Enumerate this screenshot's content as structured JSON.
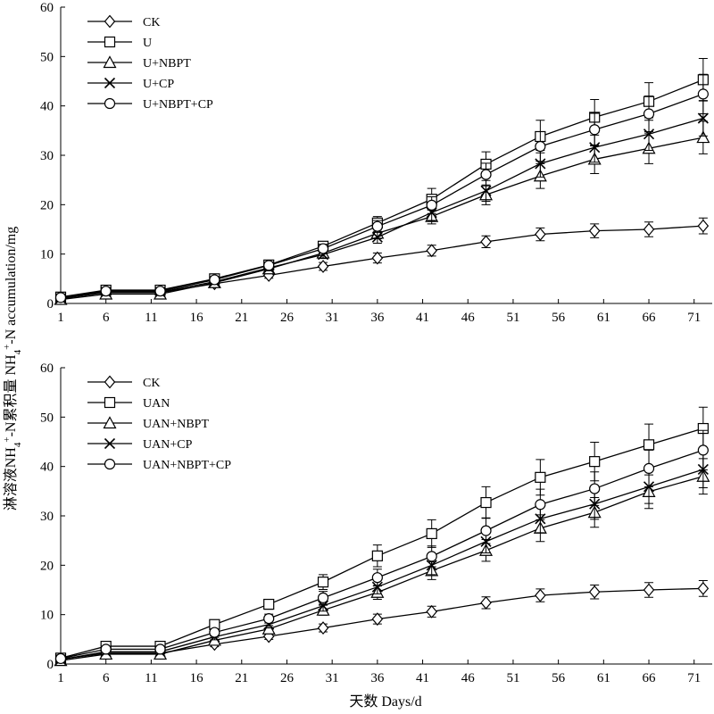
{
  "figure": {
    "ylabel": "淋溶液NH4+-N累积量 NH4+-N accumulation/mg",
    "xlabel": "天数 Days/d"
  },
  "chart_data": [
    {
      "type": "line",
      "panel": "top",
      "x": [
        1,
        6,
        12,
        18,
        24,
        30,
        36,
        42,
        48,
        54,
        60,
        66,
        72
      ],
      "xticks": [
        "1",
        "6",
        "11",
        "16",
        "21",
        "26",
        "31",
        "36",
        "41",
        "46",
        "51",
        "56",
        "61",
        "66",
        "71"
      ],
      "xlim": [
        1,
        73
      ],
      "ylim": [
        0,
        60
      ],
      "yticks": [
        "0",
        "10",
        "20",
        "30",
        "40",
        "50",
        "60"
      ],
      "legend_position": "top-left",
      "series": [
        {
          "name": "CK",
          "marker": "diamond",
          "values": [
            1.0,
            2.2,
            2.2,
            4.0,
            5.7,
            7.5,
            9.2,
            10.7,
            12.5,
            14.0,
            14.7,
            15.0,
            15.7
          ],
          "errors": [
            0.4,
            0.5,
            0.5,
            0.5,
            0.6,
            0.8,
            1.0,
            1.1,
            1.2,
            1.3,
            1.4,
            1.5,
            1.6
          ]
        },
        {
          "name": "U",
          "marker": "square",
          "values": [
            1.3,
            2.7,
            2.7,
            5.0,
            7.8,
            11.6,
            16.3,
            21.1,
            28.2,
            33.8,
            37.7,
            40.9,
            45.3
          ],
          "errors": [
            0.4,
            0.6,
            0.6,
            0.6,
            0.7,
            0.9,
            1.3,
            2.2,
            2.5,
            3.3,
            3.6,
            3.8,
            4.3
          ]
        },
        {
          "name": "U+NBPT",
          "marker": "triangle",
          "values": [
            0.8,
            1.9,
            1.9,
            4.2,
            7.0,
            10.2,
            14.2,
            17.6,
            22.0,
            25.8,
            29.2,
            31.4,
            33.6
          ],
          "errors": [
            0.3,
            0.5,
            0.5,
            0.5,
            0.6,
            0.8,
            1.1,
            1.5,
            2.0,
            2.5,
            2.9,
            3.1,
            3.3
          ]
        },
        {
          "name": "U+CP",
          "marker": "cross",
          "values": [
            1.0,
            2.3,
            2.3,
            4.4,
            7.2,
            9.9,
            13.4,
            18.4,
            22.8,
            28.3,
            31.6,
            34.3,
            37.5
          ],
          "errors": [
            0.3,
            0.5,
            0.5,
            0.5,
            0.6,
            0.8,
            1.2,
            1.6,
            2.1,
            2.7,
            3.0,
            3.3,
            3.6
          ]
        },
        {
          "name": "U+NBPT+CP",
          "marker": "circle",
          "values": [
            1.2,
            2.5,
            2.5,
            4.8,
            7.7,
            11.1,
            15.6,
            19.9,
            26.1,
            31.8,
            35.2,
            38.4,
            42.4
          ],
          "errors": [
            0.3,
            0.5,
            0.5,
            0.6,
            0.7,
            0.9,
            1.2,
            1.7,
            2.3,
            3.0,
            3.3,
            3.6,
            4.0
          ]
        }
      ]
    },
    {
      "type": "line",
      "panel": "bottom",
      "x": [
        1,
        6,
        12,
        18,
        24,
        30,
        36,
        42,
        48,
        54,
        60,
        66,
        72
      ],
      "xticks": [
        "1",
        "6",
        "11",
        "16",
        "21",
        "26",
        "31",
        "36",
        "41",
        "46",
        "51",
        "56",
        "61",
        "66",
        "71"
      ],
      "xlim": [
        1,
        73
      ],
      "ylim": [
        0,
        60
      ],
      "yticks": [
        "0",
        "10",
        "20",
        "30",
        "40",
        "50",
        "60"
      ],
      "legend_position": "top-left",
      "series": [
        {
          "name": "CK",
          "marker": "diamond",
          "values": [
            1.0,
            2.2,
            2.2,
            4.0,
            5.6,
            7.3,
            9.1,
            10.6,
            12.4,
            13.9,
            14.6,
            15.0,
            15.3
          ],
          "errors": [
            0.4,
            0.5,
            0.5,
            0.5,
            0.6,
            0.8,
            1.0,
            1.1,
            1.2,
            1.3,
            1.4,
            1.5,
            1.6
          ]
        },
        {
          "name": "UAN",
          "marker": "square",
          "values": [
            1.2,
            3.6,
            3.6,
            8.0,
            12.1,
            16.6,
            21.9,
            26.4,
            32.7,
            37.8,
            41.0,
            44.4,
            47.7
          ],
          "errors": [
            0.4,
            0.6,
            0.6,
            0.7,
            1.0,
            1.5,
            2.2,
            2.8,
            3.2,
            3.6,
            3.9,
            4.2,
            4.3
          ]
        },
        {
          "name": "UAN+NBPT",
          "marker": "triangle",
          "values": [
            0.7,
            2.0,
            2.0,
            4.8,
            7.1,
            10.9,
            14.5,
            18.9,
            23.0,
            27.5,
            30.7,
            34.9,
            38.0
          ],
          "errors": [
            0.3,
            0.5,
            0.5,
            0.6,
            0.7,
            1.0,
            1.4,
            1.8,
            2.2,
            2.7,
            3.0,
            3.4,
            3.6
          ]
        },
        {
          "name": "UAN+CP",
          "marker": "cross",
          "values": [
            0.9,
            2.5,
            2.5,
            5.5,
            8.0,
            11.8,
            15.6,
            20.0,
            24.8,
            29.4,
            32.4,
            35.9,
            39.4
          ],
          "errors": [
            0.3,
            0.5,
            0.5,
            0.6,
            0.7,
            1.1,
            1.4,
            1.9,
            2.3,
            2.8,
            3.1,
            3.4,
            3.7
          ]
        },
        {
          "name": "UAN+NBPT+CP",
          "marker": "circle",
          "values": [
            1.1,
            3.0,
            3.0,
            6.4,
            9.2,
            13.4,
            17.5,
            21.8,
            27.0,
            32.3,
            35.5,
            39.6,
            43.3
          ],
          "errors": [
            0.3,
            0.6,
            0.6,
            0.7,
            0.9,
            1.3,
            1.7,
            2.1,
            2.6,
            3.1,
            3.4,
            3.7,
            4.0
          ]
        }
      ]
    }
  ]
}
